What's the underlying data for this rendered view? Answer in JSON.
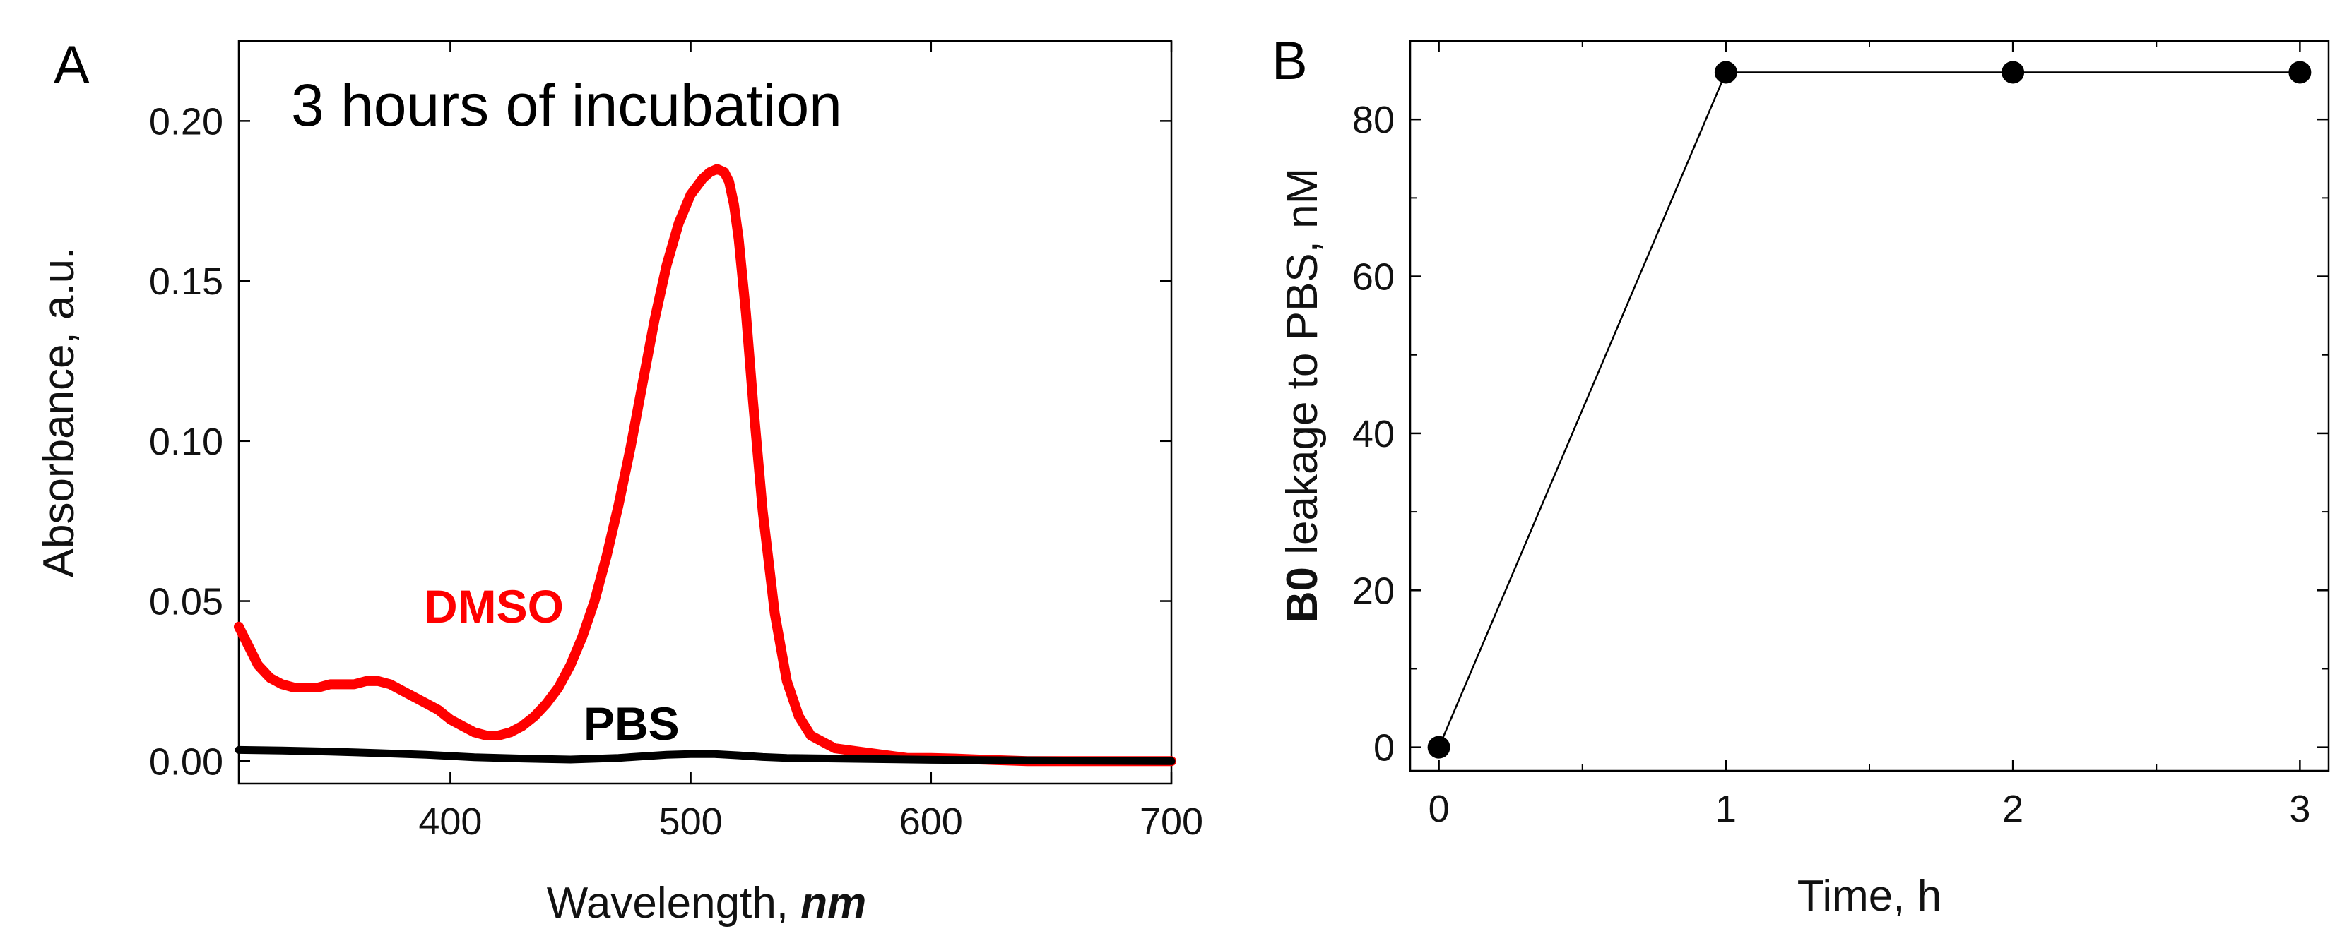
{
  "chart_data": [
    {
      "panel": "A",
      "type": "line",
      "title": "",
      "annotation": "3 hours of incubation",
      "xlabel": "Wavelength,",
      "xlabel_unit": "nm",
      "ylabel": "Absorbance, a.u.",
      "xlim": [
        312,
        700
      ],
      "ylim": [
        -0.007,
        0.225
      ],
      "xticks": [
        400,
        500,
        600,
        700
      ],
      "yticks": [
        0.0,
        0.05,
        0.1,
        0.15,
        0.2
      ],
      "xtick_labels": [
        "400",
        "500",
        "600",
        "700"
      ],
      "ytick_labels": [
        "0.00",
        "0.05",
        "0.10",
        "0.15",
        "0.20"
      ],
      "grid": false,
      "series": [
        {
          "name": "DMSO",
          "color": "#ff0000",
          "x": [
            312,
            316,
            320,
            325,
            330,
            335,
            340,
            345,
            350,
            355,
            360,
            365,
            370,
            375,
            380,
            385,
            390,
            395,
            400,
            405,
            410,
            415,
            420,
            425,
            430,
            435,
            440,
            445,
            450,
            455,
            460,
            465,
            470,
            475,
            480,
            485,
            490,
            495,
            500,
            505,
            508,
            511,
            514,
            516,
            518,
            520,
            523,
            526,
            530,
            535,
            540,
            545,
            550,
            555,
            560,
            570,
            580,
            590,
            600,
            610,
            620,
            640,
            660,
            680,
            700
          ],
          "y": [
            0.042,
            0.036,
            0.03,
            0.026,
            0.024,
            0.023,
            0.023,
            0.023,
            0.024,
            0.024,
            0.024,
            0.025,
            0.025,
            0.024,
            0.022,
            0.02,
            0.018,
            0.016,
            0.013,
            0.011,
            0.009,
            0.008,
            0.008,
            0.009,
            0.011,
            0.014,
            0.018,
            0.023,
            0.03,
            0.039,
            0.05,
            0.064,
            0.08,
            0.098,
            0.118,
            0.138,
            0.155,
            0.168,
            0.177,
            0.182,
            0.184,
            0.185,
            0.184,
            0.181,
            0.174,
            0.163,
            0.14,
            0.112,
            0.078,
            0.046,
            0.025,
            0.014,
            0.008,
            0.006,
            0.004,
            0.003,
            0.002,
            0.001,
            0.001,
            0.0008,
            0.0005,
            0.0,
            0.0,
            0.0,
            0.0
          ]
        },
        {
          "name": "PBS",
          "color": "#000000",
          "x": [
            312,
            330,
            350,
            370,
            390,
            410,
            430,
            450,
            470,
            490,
            500,
            510,
            520,
            530,
            540,
            560,
            580,
            600,
            650,
            700
          ],
          "y": [
            0.0035,
            0.0033,
            0.003,
            0.0025,
            0.002,
            0.0012,
            0.0008,
            0.0005,
            0.001,
            0.002,
            0.0022,
            0.0022,
            0.0018,
            0.0013,
            0.001,
            0.0008,
            0.0006,
            0.0004,
            0.0002,
            0.0
          ]
        }
      ]
    },
    {
      "panel": "B",
      "type": "line",
      "title": "",
      "xlabel": "Time, h",
      "ylabel_bold": "B0",
      "ylabel": "leakage to PBS, nM",
      "xlim": [
        -0.1,
        3.1
      ],
      "ylim": [
        -3,
        90
      ],
      "xticks": [
        0,
        1,
        2,
        3
      ],
      "yticks": [
        0,
        20,
        40,
        60,
        80
      ],
      "xtick_labels": [
        "0",
        "1",
        "2",
        "3"
      ],
      "ytick_labels": [
        "0",
        "20",
        "40",
        "60",
        "80"
      ],
      "grid": false,
      "series": [
        {
          "name": "B0 leakage",
          "color": "#000000",
          "marker": "circle",
          "x": [
            0,
            1,
            2,
            3
          ],
          "y": [
            0,
            86,
            86,
            86
          ]
        }
      ]
    }
  ]
}
